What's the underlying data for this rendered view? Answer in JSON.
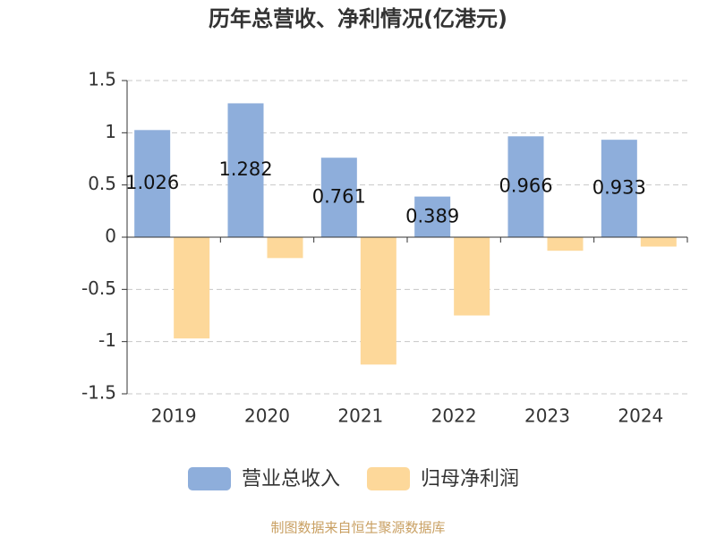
{
  "chart_data": {
    "type": "bar",
    "title": "历年总营收、净利情况(亿港元)",
    "categories": [
      "2019",
      "2020",
      "2021",
      "2022",
      "2023",
      "2024"
    ],
    "series": [
      {
        "name": "营业总收入",
        "color": "#8eaedb",
        "values": [
          1.026,
          1.282,
          0.761,
          0.389,
          0.966,
          0.933
        ],
        "show_labels": true
      },
      {
        "name": "归母净利润",
        "color": "#fdd89a",
        "values": [
          -0.97,
          -0.2,
          -1.22,
          -0.75,
          -0.13,
          -0.09
        ],
        "show_labels": false
      }
    ],
    "ylim": [
      -1.5,
      1.5
    ],
    "yticks": [
      1.5,
      1,
      0.5,
      0,
      -0.5,
      -1,
      -1.5
    ],
    "grid": true,
    "source": "制图数据来自恒生聚源数据库"
  }
}
